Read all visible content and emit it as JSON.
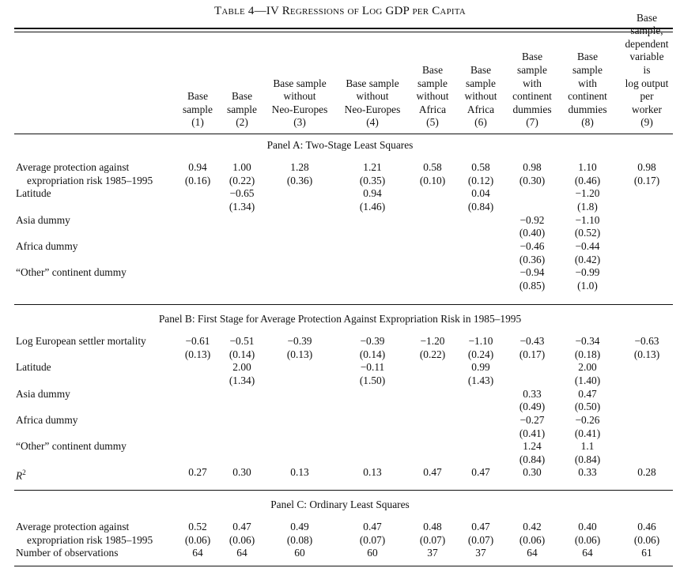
{
  "title": {
    "prefix": "Table 4",
    "dash": "—",
    "caption": "IV Regressions of Log GDP per Capita"
  },
  "columns": [
    {
      "header": [
        "Base",
        "sample"
      ],
      "number": "(1)"
    },
    {
      "header": [
        "Base",
        "sample"
      ],
      "number": "(2)"
    },
    {
      "header": [
        "Base sample",
        "without",
        "Neo-Europes"
      ],
      "number": "(3)"
    },
    {
      "header": [
        "Base sample",
        "without",
        "Neo-Europes"
      ],
      "number": "(4)"
    },
    {
      "header": [
        "Base",
        "sample",
        "without",
        "Africa"
      ],
      "number": "(5)"
    },
    {
      "header": [
        "Base",
        "sample",
        "without",
        "Africa"
      ],
      "number": "(6)"
    },
    {
      "header": [
        "Base",
        "sample",
        "with",
        "continent",
        "dummies"
      ],
      "number": "(7)"
    },
    {
      "header": [
        "Base",
        "sample",
        "with",
        "continent",
        "dummies"
      ],
      "number": "(8)"
    },
    {
      "header": [
        "Base",
        "sample,",
        "dependent",
        "variable is",
        "log output",
        "per worker"
      ],
      "number": "(9)"
    }
  ],
  "panels": [
    {
      "title": "Panel A: Two-Stage Least Squares",
      "rows": [
        {
          "label": [
            "Average protection against",
            "expropriation risk 1985–1995"
          ],
          "values": [
            "0.94",
            "1.00",
            "1.28",
            "1.21",
            "0.58",
            "0.58",
            "0.98",
            "1.10",
            "0.98"
          ],
          "se": [
            "(0.16)",
            "(0.22)",
            "(0.36)",
            "(0.35)",
            "(0.10)",
            "(0.12)",
            "(0.30)",
            "(0.46)",
            "(0.17)"
          ]
        },
        {
          "label": [
            "Latitude"
          ],
          "values": [
            "",
            "−0.65",
            "",
            "0.94",
            "",
            "0.04",
            "",
            "−1.20",
            ""
          ],
          "se": [
            "",
            "(1.34)",
            "",
            "(1.46)",
            "",
            "(0.84)",
            "",
            "(1.8)",
            ""
          ]
        },
        {
          "label": [
            "Asia dummy"
          ],
          "values": [
            "",
            "",
            "",
            "",
            "",
            "",
            "−0.92",
            "−1.10",
            ""
          ],
          "se": [
            "",
            "",
            "",
            "",
            "",
            "",
            "(0.40)",
            "(0.52)",
            ""
          ]
        },
        {
          "label": [
            "Africa dummy"
          ],
          "values": [
            "",
            "",
            "",
            "",
            "",
            "",
            "−0.46",
            "−0.44",
            ""
          ],
          "se": [
            "",
            "",
            "",
            "",
            "",
            "",
            "(0.36)",
            "(0.42)",
            ""
          ]
        },
        {
          "label": [
            "“Other” continent dummy"
          ],
          "values": [
            "",
            "",
            "",
            "",
            "",
            "",
            "−0.94",
            "−0.99",
            ""
          ],
          "se": [
            "",
            "",
            "",
            "",
            "",
            "",
            "(0.85)",
            "(1.0)",
            ""
          ]
        }
      ]
    },
    {
      "title": "Panel B: First Stage for Average Protection Against Expropriation Risk in 1985–1995",
      "rows": [
        {
          "label": [
            "Log European settler mortality"
          ],
          "values": [
            "−0.61",
            "−0.51",
            "−0.39",
            "−0.39",
            "−1.20",
            "−1.10",
            "−0.43",
            "−0.34",
            "−0.63"
          ],
          "se": [
            "(0.13)",
            "(0.14)",
            "(0.13)",
            "(0.14)",
            "(0.22)",
            "(0.24)",
            "(0.17)",
            "(0.18)",
            "(0.13)"
          ]
        },
        {
          "label": [
            "Latitude"
          ],
          "values": [
            "",
            "2.00",
            "",
            "−0.11",
            "",
            "0.99",
            "",
            "2.00",
            ""
          ],
          "se": [
            "",
            "(1.34)",
            "",
            "(1.50)",
            "",
            "(1.43)",
            "",
            "(1.40)",
            ""
          ]
        },
        {
          "label": [
            "Asia dummy"
          ],
          "values": [
            "",
            "",
            "",
            "",
            "",
            "",
            "0.33",
            "0.47",
            ""
          ],
          "se": [
            "",
            "",
            "",
            "",
            "",
            "",
            "(0.49)",
            "(0.50)",
            ""
          ]
        },
        {
          "label": [
            "Africa dummy"
          ],
          "values": [
            "",
            "",
            "",
            "",
            "",
            "",
            "−0.27",
            "−0.26",
            ""
          ],
          "se": [
            "",
            "",
            "",
            "",
            "",
            "",
            "(0.41)",
            "(0.41)",
            ""
          ]
        },
        {
          "label": [
            "“Other” continent dummy"
          ],
          "values": [
            "",
            "",
            "",
            "",
            "",
            "",
            "1.24",
            "1.1",
            ""
          ],
          "se": [
            "",
            "",
            "",
            "",
            "",
            "",
            "(0.84)",
            "(0.84)",
            ""
          ]
        }
      ],
      "r2": {
        "label_base": "R",
        "label_sup": "2",
        "values": [
          "0.27",
          "0.30",
          "0.13",
          "0.13",
          "0.47",
          "0.47",
          "0.30",
          "0.33",
          "0.28"
        ]
      }
    },
    {
      "title": "Panel C: Ordinary Least Squares",
      "rows": [
        {
          "label": [
            "Average protection against",
            "expropriation risk 1985–1995"
          ],
          "values": [
            "0.52",
            "0.47",
            "0.49",
            "0.47",
            "0.48",
            "0.47",
            "0.42",
            "0.40",
            "0.46"
          ],
          "se": [
            "(0.06)",
            "(0.06)",
            "(0.08)",
            "(0.07)",
            "(0.07)",
            "(0.07)",
            "(0.06)",
            "(0.06)",
            "(0.06)"
          ]
        }
      ],
      "observations": {
        "label": "Number of observations",
        "values": [
          "64",
          "64",
          "60",
          "60",
          "37",
          "37",
          "64",
          "64",
          "61"
        ]
      }
    }
  ]
}
